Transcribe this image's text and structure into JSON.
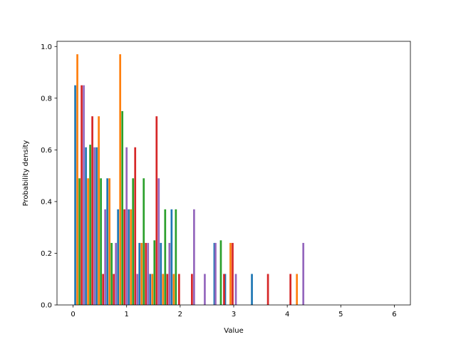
{
  "chart_data": {
    "type": "bar",
    "title": "",
    "xlabel": "Value",
    "ylabel": "Probability density",
    "xlim": [
      -0.3,
      6.3
    ],
    "ylim": [
      0,
      1.02
    ],
    "xticks": [
      0,
      1,
      2,
      3,
      4,
      5,
      6
    ],
    "yticks": [
      0.0,
      0.2,
      0.4,
      0.6,
      0.8,
      1.0
    ],
    "xtick_labels": [
      "0",
      "1",
      "2",
      "3",
      "4",
      "5",
      "6"
    ],
    "ytick_labels": [
      "0.0",
      "0.2",
      "0.4",
      "0.6",
      "0.8",
      "1.0"
    ],
    "grid": false,
    "legend": "none",
    "bin_width": 0.2,
    "series": [
      {
        "color": "#1f77b4",
        "bins": [
          {
            "x": 0.04,
            "y": 0.85
          },
          {
            "x": 0.24,
            "y": 0.61
          },
          {
            "x": 0.44,
            "y": 0.61
          },
          {
            "x": 0.64,
            "y": 0.49
          },
          {
            "x": 0.84,
            "y": 0.37
          },
          {
            "x": 1.04,
            "y": 0.37
          },
          {
            "x": 1.24,
            "y": 0.24
          },
          {
            "x": 1.44,
            "y": 0.12
          },
          {
            "x": 1.64,
            "y": 0.24
          },
          {
            "x": 1.84,
            "y": 0.37
          },
          {
            "x": 2.64,
            "y": 0.24
          },
          {
            "x": 2.84,
            "y": 0.12
          },
          {
            "x": 3.34,
            "y": 0.12
          }
        ]
      },
      {
        "color": "#ff7f0e",
        "bins": [
          {
            "x": 0.08,
            "y": 0.97
          },
          {
            "x": 0.28,
            "y": 0.49
          },
          {
            "x": 0.48,
            "y": 0.73
          },
          {
            "x": 0.68,
            "y": 0.49
          },
          {
            "x": 0.88,
            "y": 0.97
          },
          {
            "x": 1.08,
            "y": 0.37
          },
          {
            "x": 1.28,
            "y": 0.24
          },
          {
            "x": 1.48,
            "y": 0.12
          },
          {
            "x": 1.68,
            "y": 0.12
          },
          {
            "x": 1.88,
            "y": 0.12
          },
          {
            "x": 2.94,
            "y": 0.24
          },
          {
            "x": 4.18,
            "y": 0.12
          }
        ]
      },
      {
        "color": "#2ca02c",
        "bins": [
          {
            "x": 0.12,
            "y": 0.49
          },
          {
            "x": 0.32,
            "y": 0.62
          },
          {
            "x": 0.52,
            "y": 0.49
          },
          {
            "x": 0.72,
            "y": 0.24
          },
          {
            "x": 0.92,
            "y": 0.75
          },
          {
            "x": 1.12,
            "y": 0.49
          },
          {
            "x": 1.32,
            "y": 0.49
          },
          {
            "x": 1.52,
            "y": 0.25
          },
          {
            "x": 1.72,
            "y": 0.37
          },
          {
            "x": 1.92,
            "y": 0.37
          },
          {
            "x": 2.76,
            "y": 0.25
          }
        ]
      },
      {
        "color": "#d62728",
        "bins": [
          {
            "x": 0.16,
            "y": 0.85
          },
          {
            "x": 0.36,
            "y": 0.73
          },
          {
            "x": 0.56,
            "y": 0.12
          },
          {
            "x": 0.76,
            "y": 0.12
          },
          {
            "x": 0.96,
            "y": 0.37
          },
          {
            "x": 1.16,
            "y": 0.61
          },
          {
            "x": 1.36,
            "y": 0.24
          },
          {
            "x": 1.56,
            "y": 0.73
          },
          {
            "x": 1.76,
            "y": 0.12
          },
          {
            "x": 1.98,
            "y": 0.12
          },
          {
            "x": 2.22,
            "y": 0.12
          },
          {
            "x": 2.82,
            "y": 0.12
          },
          {
            "x": 2.98,
            "y": 0.24
          },
          {
            "x": 3.64,
            "y": 0.12
          },
          {
            "x": 4.06,
            "y": 0.12
          }
        ]
      },
      {
        "color": "#9467bd",
        "bins": [
          {
            "x": 0.2,
            "y": 0.85
          },
          {
            "x": 0.4,
            "y": 0.61
          },
          {
            "x": 0.6,
            "y": 0.37
          },
          {
            "x": 0.8,
            "y": 0.24
          },
          {
            "x": 1.0,
            "y": 0.61
          },
          {
            "x": 1.2,
            "y": 0.12
          },
          {
            "x": 1.4,
            "y": 0.24
          },
          {
            "x": 1.6,
            "y": 0.49
          },
          {
            "x": 1.8,
            "y": 0.24
          },
          {
            "x": 2.26,
            "y": 0.37
          },
          {
            "x": 2.46,
            "y": 0.12
          },
          {
            "x": 2.66,
            "y": 0.24
          },
          {
            "x": 3.04,
            "y": 0.12
          },
          {
            "x": 4.3,
            "y": 0.24
          }
        ]
      }
    ]
  }
}
